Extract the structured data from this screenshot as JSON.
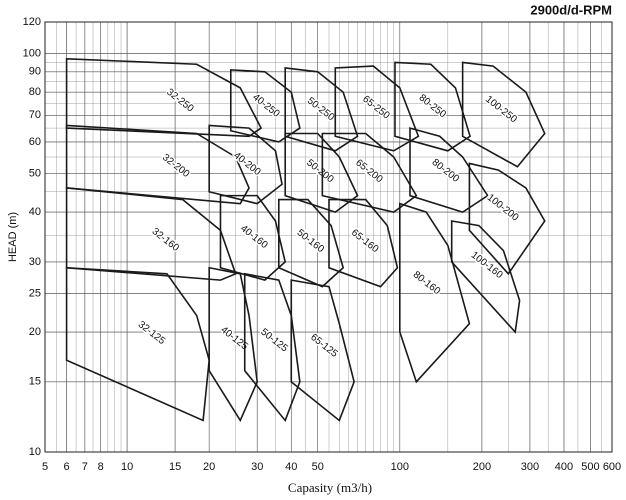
{
  "chart_data": {
    "type": "region",
    "title": "2900d/d-RPM",
    "x_label": "Capasity (m3/h)",
    "y_label": "HEAD (m)",
    "log_x": true,
    "log_y": true,
    "grid": true,
    "minor_grid": true,
    "color": "#1a1a1a",
    "xlim": [
      5,
      600
    ],
    "ylim": [
      10,
      120
    ],
    "xticks": [
      5,
      6,
      7,
      8,
      10,
      15,
      20,
      30,
      40,
      50,
      100,
      200,
      300,
      400,
      500,
      600
    ],
    "yticks": [
      10,
      15,
      20,
      25,
      30,
      40,
      50,
      60,
      70,
      80,
      90,
      100,
      120
    ],
    "series": [
      {
        "name": "32-250",
        "x": [
          6,
          18,
          26,
          31,
          28,
          6
        ],
        "y": [
          97,
          94,
          82,
          65,
          62,
          65
        ]
      },
      {
        "name": "40-250",
        "x": [
          24,
          32,
          40,
          43,
          36,
          24
        ],
        "y": [
          91,
          90,
          80,
          65,
          60,
          64
        ]
      },
      {
        "name": "50-250",
        "x": [
          38,
          50,
          62,
          70,
          58,
          38
        ],
        "y": [
          92,
          90,
          80,
          62,
          57,
          62
        ]
      },
      {
        "name": "65-250",
        "x": [
          58,
          80,
          100,
          117,
          95,
          58
        ],
        "y": [
          92,
          93,
          82,
          62,
          57,
          62
        ]
      },
      {
        "name": "80-250",
        "x": [
          96,
          130,
          160,
          181,
          150,
          96
        ],
        "y": [
          95,
          94,
          82,
          62,
          57,
          62
        ]
      },
      {
        "name": "100-250",
        "x": [
          170,
          220,
          290,
          340,
          270,
          170
        ],
        "y": [
          95,
          93,
          80,
          63,
          52,
          62
        ]
      },
      {
        "name": "32-200",
        "x": [
          6,
          18,
          25,
          28,
          26,
          6
        ],
        "y": [
          66,
          63,
          55,
          46,
          42,
          46
        ]
      },
      {
        "name": "40-200",
        "x": [
          20,
          28,
          35,
          37,
          30,
          20
        ],
        "y": [
          66,
          65,
          57,
          47,
          42,
          45
        ]
      },
      {
        "name": "50-200",
        "x": [
          38,
          50,
          60,
          70,
          58,
          38
        ],
        "y": [
          63,
          63,
          55,
          44,
          40,
          44
        ]
      },
      {
        "name": "65-200",
        "x": [
          52,
          75,
          95,
          115,
          95,
          52
        ],
        "y": [
          63,
          63,
          55,
          44,
          40,
          44
        ]
      },
      {
        "name": "80-200",
        "x": [
          109,
          140,
          170,
          210,
          170,
          109
        ],
        "y": [
          65,
          62,
          55,
          44,
          40,
          44
        ]
      },
      {
        "name": "100-200",
        "x": [
          180,
          230,
          290,
          340,
          250,
          180
        ],
        "y": [
          53,
          51,
          46,
          38,
          28,
          36
        ]
      },
      {
        "name": "32-160",
        "x": [
          6,
          16,
          22,
          25,
          22,
          6
        ],
        "y": [
          46,
          43,
          36,
          28,
          27,
          29
        ]
      },
      {
        "name": "40-160",
        "x": [
          22,
          30,
          35,
          38,
          32,
          22
        ],
        "y": [
          44,
          44,
          38,
          30,
          27,
          29
        ]
      },
      {
        "name": "50-160",
        "x": [
          36,
          46,
          56,
          62,
          52,
          36
        ],
        "y": [
          43,
          43,
          37,
          29,
          26,
          29
        ]
      },
      {
        "name": "65-160",
        "x": [
          55,
          75,
          90,
          98,
          85,
          55
        ],
        "y": [
          43,
          43,
          37,
          29,
          26,
          29
        ]
      },
      {
        "name": "80-160",
        "x": [
          100,
          125,
          150,
          180,
          115,
          100
        ],
        "y": [
          42,
          40,
          33,
          21,
          15,
          20
        ]
      },
      {
        "name": "100-160",
        "x": [
          155,
          195,
          240,
          275,
          265,
          155
        ],
        "y": [
          38,
          37,
          32,
          24,
          20,
          30
        ]
      },
      {
        "name": "32-125",
        "x": [
          6,
          14,
          18,
          20,
          19,
          6
        ],
        "y": [
          29,
          28,
          22,
          17,
          12,
          17
        ]
      },
      {
        "name": "40-125",
        "x": [
          20,
          26,
          28,
          30,
          26,
          20
        ],
        "y": [
          29,
          28,
          22,
          15,
          12,
          16
        ]
      },
      {
        "name": "50-125",
        "x": [
          27,
          36,
          40,
          43,
          38,
          27
        ],
        "y": [
          28,
          27,
          22,
          15,
          12,
          16
        ]
      },
      {
        "name": "65-125",
        "x": [
          40,
          55,
          60,
          68,
          60,
          40
        ],
        "y": [
          27,
          26,
          21,
          15,
          12,
          15
        ]
      }
    ]
  }
}
